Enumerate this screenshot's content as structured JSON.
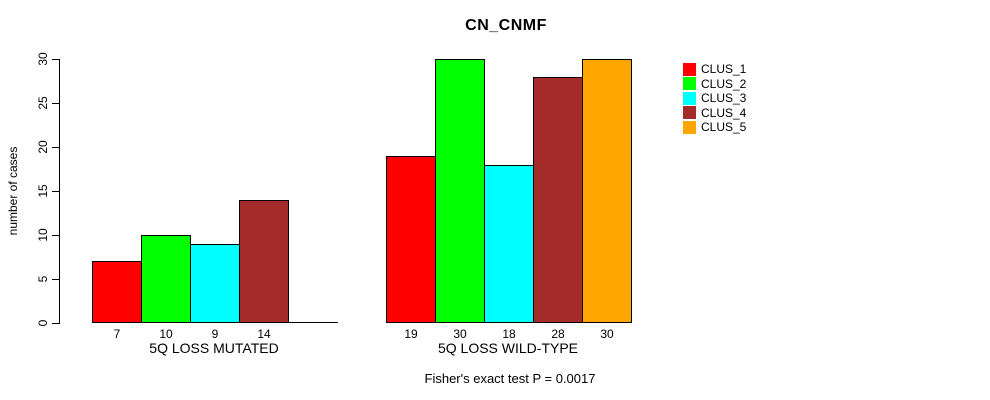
{
  "title": "CN_CNMF",
  "ylabel": "number of cases",
  "footer": "Fisher's exact test P = 0.0017",
  "chart_data": {
    "type": "bar",
    "title": "CN_CNMF",
    "ylabel": "number of cases",
    "xlabel": "",
    "ylim": [
      0,
      30
    ],
    "y_ticks": [
      0,
      5,
      10,
      15,
      20,
      25,
      30
    ],
    "categories": [
      "5Q LOSS MUTATED",
      "5Q LOSS WILD-TYPE"
    ],
    "series": [
      {
        "name": "CLUS_1",
        "color": "#FF0000",
        "values": [
          7,
          19
        ]
      },
      {
        "name": "CLUS_2",
        "color": "#00FF00",
        "values": [
          10,
          30
        ]
      },
      {
        "name": "CLUS_3",
        "color": "#00FFFF",
        "values": [
          9,
          18
        ]
      },
      {
        "name": "CLUS_4",
        "color": "#A52A2A",
        "values": [
          14,
          28
        ]
      },
      {
        "name": "CLUS_5",
        "color": "#FFA500",
        "values": [
          0,
          30
        ]
      }
    ],
    "bar_value_labels_shown": true,
    "zero_value_label_hidden": true,
    "annotation": "Fisher's exact test P = 0.0017",
    "legend_position": "right",
    "grid": false,
    "bar_border_color": "#000000",
    "background_color": "#FFFFFF"
  }
}
